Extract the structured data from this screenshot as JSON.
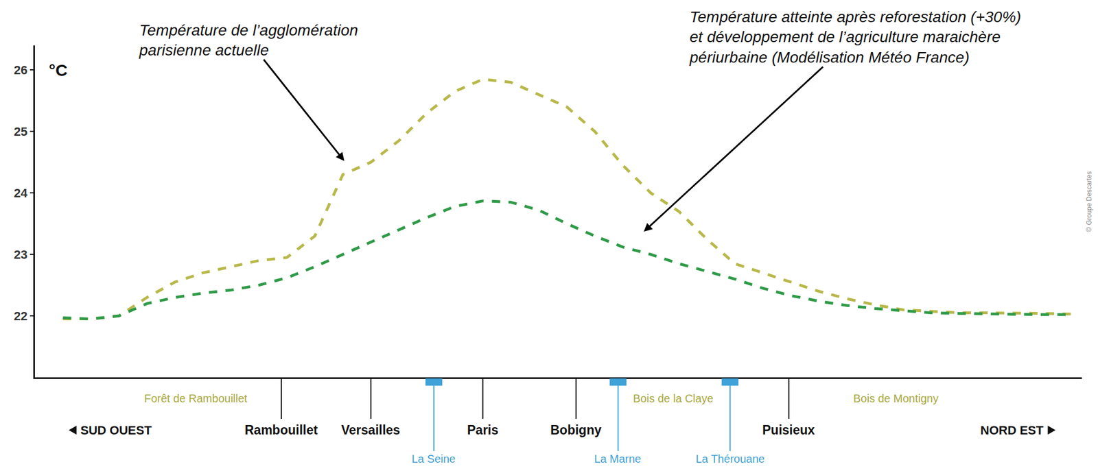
{
  "chart_data": {
    "type": "line",
    "ylabel": "°C",
    "categories": [
      null,
      null,
      null,
      null,
      null,
      null,
      null,
      null,
      null,
      null,
      null,
      null,
      null,
      null,
      null,
      null,
      null,
      null,
      null,
      null,
      null,
      null,
      null,
      null,
      null,
      null,
      null,
      null,
      null,
      null,
      null,
      null,
      null,
      null,
      null,
      null,
      null
    ],
    "series": [
      {
        "color": "#b8b84a",
        "line_style": "dashed",
        "values": [
          21.95,
          21.95,
          22.0,
          22.3,
          22.55,
          22.7,
          22.8,
          22.9,
          22.95,
          23.3,
          24.3,
          24.5,
          24.85,
          25.3,
          25.65,
          25.85,
          25.8,
          25.6,
          25.4,
          25.0,
          24.45,
          24.0,
          23.7,
          23.25,
          22.85,
          22.7,
          22.55,
          22.4,
          22.28,
          22.18,
          22.1,
          22.07,
          22.05,
          22.05,
          22.05,
          22.04,
          22.03
        ]
      },
      {
        "color": "#2f9a48",
        "line_style": "dashed",
        "values": [
          21.97,
          21.95,
          22.0,
          22.2,
          22.3,
          22.37,
          22.42,
          22.5,
          22.62,
          22.8,
          23.0,
          23.2,
          23.4,
          23.6,
          23.78,
          23.87,
          23.85,
          23.72,
          23.5,
          23.3,
          23.12,
          23.0,
          22.85,
          22.73,
          22.6,
          22.45,
          22.33,
          22.24,
          22.17,
          22.12,
          22.08,
          22.05,
          22.04,
          22.03,
          22.03,
          22.02,
          22.02
        ]
      }
    ],
    "ylim": [
      21,
      26.4
    ],
    "yticks": [
      22,
      23,
      24,
      25,
      26
    ],
    "grid": false,
    "tick_labels": "y",
    "annotations": [
      {
        "kind": "note",
        "lines": [
          "Température de l’agglomération",
          "parisienne actuelle"
        ],
        "x": 10.05,
        "y": 24.52
      },
      {
        "kind": "note",
        "lines": [
          "Température atteinte après reforestation (+30%)",
          "et développement de l’agriculture maraichère",
          "périurbaine (Modélisation Météo France)"
        ],
        "x": 20.75,
        "y": 23.37
      },
      {
        "kind": "forest",
        "text": "Forêt de Rambouillet",
        "x": 4.75
      },
      {
        "kind": "forest",
        "text": "Bois de la Claye",
        "x": 21.8
      },
      {
        "kind": "forest",
        "text": "Bois de Montigny",
        "x": 29.75
      },
      {
        "kind": "city",
        "text": "Rambouillet",
        "x": 7.8
      },
      {
        "kind": "city",
        "text": "Versailles",
        "x": 11.0
      },
      {
        "kind": "city",
        "text": "Paris",
        "x": 15.0
      },
      {
        "kind": "city",
        "text": "Bobigny",
        "x": 18.33
      },
      {
        "kind": "city",
        "text": "Puisieux",
        "x": 25.93
      },
      {
        "kind": "river",
        "text": "La Seine",
        "x": 13.25
      },
      {
        "kind": "river",
        "text": "La Marne",
        "x": 19.83
      },
      {
        "kind": "river",
        "text": "La Thérouane",
        "x": 23.83
      },
      {
        "kind": "direction",
        "text": "SUD OUEST",
        "x": 1.9
      },
      {
        "kind": "direction",
        "text": "NORD EST",
        "x": 33.9
      },
      {
        "kind": "credit",
        "text": "© Groupe Descartes"
      }
    ]
  }
}
